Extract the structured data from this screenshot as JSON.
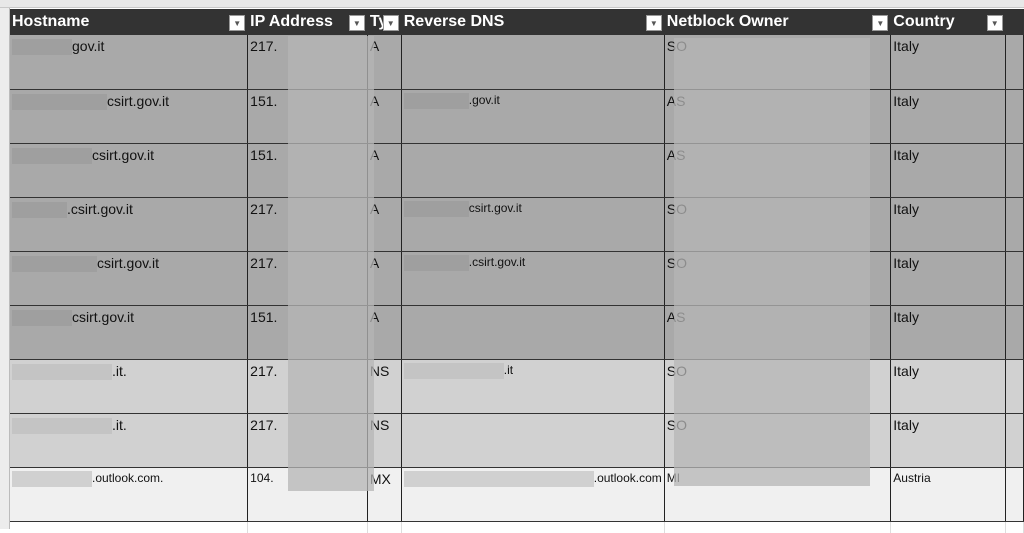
{
  "columns": [
    "Hostname",
    "IP Address",
    "Ty",
    "Reverse DNS",
    "Netblock Owner",
    "Country"
  ],
  "rows": [
    {
      "hostname": "gov.it",
      "ip": "217.",
      "type": "A",
      "rdns": "",
      "owner": "SO",
      "country": "Italy",
      "style": "r1"
    },
    {
      "hostname": "csirt.gov.it",
      "ip": "151.",
      "type": "A",
      "rdns": ".gov.it",
      "owner": "AS",
      "country": "Italy",
      "style": "r1"
    },
    {
      "hostname": "csirt.gov.it",
      "ip": "151.",
      "type": "A",
      "rdns": "",
      "owner": "AS",
      "country": "Italy",
      "style": "r1"
    },
    {
      "hostname": ".csirt.gov.it",
      "ip": "217.",
      "type": "A",
      "rdns": "csirt.gov.it",
      "owner": "SO",
      "country": "Italy",
      "style": "r1"
    },
    {
      "hostname": "csirt.gov.it",
      "ip": "217.",
      "type": "A",
      "rdns": ".csirt.gov.it",
      "owner": "SO",
      "country": "Italy",
      "style": "r1"
    },
    {
      "hostname": "csirt.gov.it",
      "ip": "151.",
      "type": "A",
      "rdns": "",
      "owner": "AS",
      "country": "Italy",
      "style": "r1"
    },
    {
      "hostname": ".it.",
      "ip": "217.",
      "type": "NS",
      "rdns": ".it",
      "owner": "SO",
      "country": "Italy",
      "style": "r2"
    },
    {
      "hostname": ".it.",
      "ip": "217.",
      "type": "NS",
      "rdns": "",
      "owner": "SO",
      "country": "Italy",
      "style": "r2"
    },
    {
      "hostname": ".outlook.com.",
      "ip": "104.",
      "type": "MX",
      "rdns": ".outlook.com",
      "owner": "MI",
      "country": "Austria",
      "style": "r3"
    }
  ]
}
